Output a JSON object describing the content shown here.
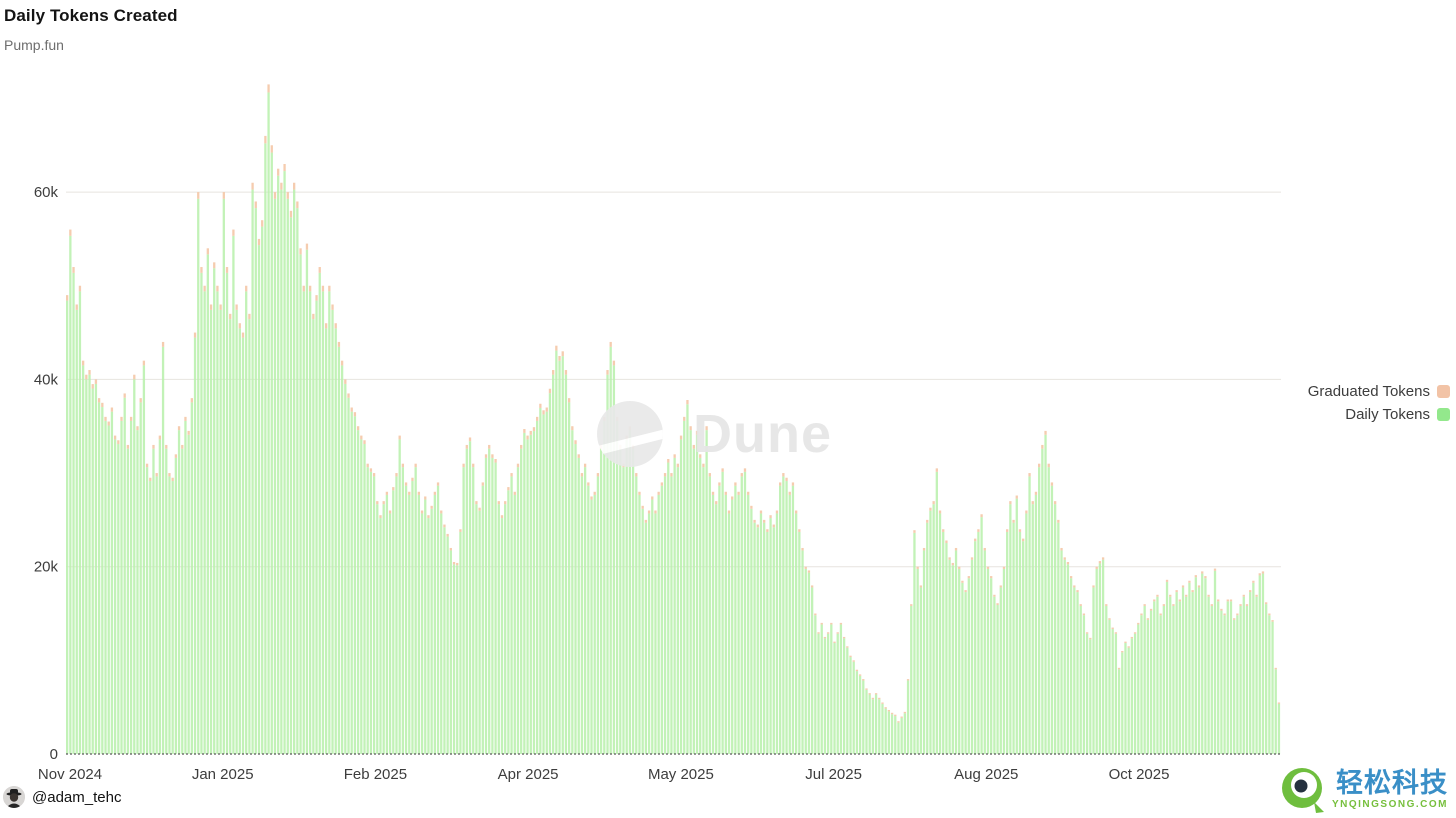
{
  "header": {
    "title": "Daily Tokens Created",
    "subtitle": "Pump.fun"
  },
  "watermark": {
    "text": "Dune"
  },
  "footer": {
    "handle": "@adam_tehc"
  },
  "brand": {
    "name": "轻松科技",
    "domain": "YNQINGSONG.COM"
  },
  "legend": [
    {
      "label": "Graduated Tokens",
      "color": "#f2c3a6"
    },
    {
      "label": "Daily Tokens",
      "color": "#93e88c"
    }
  ],
  "colors": {
    "bar_green": "#b9f0ad",
    "bar_salmon": "#f4c6a6",
    "gridline": "#e7e4df",
    "axis_text": "#3d3d3d",
    "baseline": "#5a5a5a"
  },
  "chart_data": {
    "type": "bar",
    "stacked": true,
    "title": "Daily Tokens Created",
    "subtitle": "Pump.fun",
    "xlabel": "",
    "ylabel": "",
    "grid": true,
    "legend_position": "right",
    "x_ticks": [
      "Nov 2024",
      "Jan 2025",
      "Feb 2025",
      "Apr 2025",
      "May 2025",
      "Jul 2025",
      "Aug 2025",
      "Oct 2025"
    ],
    "y_ticks": [
      {
        "label": "0",
        "value_k": 0
      },
      {
        "label": "20k",
        "value_k": 20
      },
      {
        "label": "40k",
        "value_k": 40
      },
      {
        "label": "60k",
        "value_k": 60
      }
    ],
    "ylim_k": [
      0,
      72
    ],
    "time_span": "Nov 2024 to mid Nov 2025, one bar per day",
    "peak": {
      "value_k": 71.5,
      "period": "early Jan 2025"
    },
    "series": [
      {
        "name": "Daily Tokens",
        "unit": "tokens created per day (thousands)",
        "values_k": [
          49,
          56,
          52,
          48,
          50,
          42,
          40.5,
          41,
          39.5,
          40,
          38,
          37.5,
          36,
          35.5,
          37,
          34,
          33.5,
          36,
          38.5,
          33,
          36,
          40.5,
          35,
          38,
          42,
          31,
          29.5,
          33,
          30,
          34,
          44,
          33,
          30,
          29.5,
          32,
          35,
          33,
          36,
          34.5,
          38,
          45,
          60,
          52,
          50,
          54,
          48,
          52.5,
          50,
          48,
          60,
          52,
          47,
          56,
          48,
          46,
          45,
          50,
          47,
          61,
          59,
          55,
          57,
          66,
          71.5,
          65,
          60,
          62.5,
          61,
          63,
          60,
          58,
          61,
          59,
          54,
          50,
          54.5,
          50,
          47,
          49,
          52,
          50,
          46,
          50,
          48,
          46,
          44,
          42,
          40,
          38.5,
          37,
          36.5,
          35,
          34,
          33.5,
          31,
          30.5,
          30,
          27,
          25.5,
          27,
          28,
          26,
          28.5,
          30,
          34,
          31,
          29,
          28,
          29.5,
          31,
          28,
          26,
          27.5,
          25.5,
          26.5,
          28,
          29,
          26,
          24.5,
          23.5,
          22,
          20.5,
          20.4,
          24,
          31,
          33,
          33.8,
          31,
          27,
          26.3,
          29,
          32,
          33,
          32,
          31.5,
          27,
          25.5,
          27,
          28.5,
          30,
          28,
          31,
          33,
          34.7,
          34,
          34.5,
          34.9,
          36,
          37.4,
          36.7,
          37,
          39,
          41,
          43.6,
          42.5,
          43,
          41,
          38,
          35,
          33.5,
          32,
          30,
          31,
          29,
          27.5,
          28,
          30,
          33,
          36,
          41,
          44,
          42,
          36,
          33,
          31,
          34,
          35,
          33,
          30,
          28,
          26.5,
          25,
          26,
          27.5,
          26,
          28,
          29,
          30,
          31.5,
          30,
          32,
          31,
          34,
          36,
          37.8,
          35,
          33,
          34.5,
          32,
          31,
          35,
          30,
          28,
          27,
          29,
          30.5,
          28,
          26,
          27.5,
          29,
          28,
          30,
          30.5,
          28,
          26.5,
          25,
          24.5,
          26,
          25,
          24,
          25.5,
          24.5,
          26,
          29,
          30,
          29.5,
          28,
          29,
          26,
          24,
          22,
          20,
          19.6,
          18,
          15,
          13,
          14,
          12.5,
          13,
          14,
          12,
          13,
          14,
          12.5,
          11.5,
          10.5,
          10,
          9,
          8.5,
          8,
          7,
          6.5,
          6,
          6.5,
          6,
          5.5,
          5,
          4.7,
          4.4,
          4.2,
          3.5,
          4,
          4.5,
          8,
          16,
          23.9,
          20,
          18,
          22,
          25,
          26.3,
          27,
          30.5,
          26,
          24,
          22.8,
          21,
          20.4,
          22,
          20,
          18.5,
          17.5,
          19,
          21,
          23,
          24,
          25.6,
          22,
          20,
          19,
          17,
          16.1,
          18,
          20,
          24,
          27,
          25,
          27.6,
          24,
          23,
          26,
          30,
          27,
          28,
          31,
          33,
          34.5,
          31,
          29,
          27,
          25,
          22,
          21,
          20.5,
          19,
          18,
          17.5,
          16,
          15,
          13,
          12.4,
          18,
          20,
          20.6,
          21,
          16,
          14.5,
          13.5,
          13,
          9.2,
          11,
          12,
          11.5,
          12.5,
          13,
          14,
          15,
          16,
          14.5,
          15.5,
          16.5,
          17,
          15,
          16,
          18.6,
          17,
          16,
          17.5,
          16.5,
          18,
          17,
          18.5,
          17.5,
          19.1,
          18,
          19.5,
          19,
          17,
          16,
          19.8,
          16.5,
          15.5,
          15,
          16.5,
          16.5,
          14.5,
          15,
          16,
          17,
          16,
          17.5,
          18.5,
          17,
          19.3,
          19.5,
          16.2,
          15,
          14.3,
          9.2,
          5.5
        ]
      },
      {
        "name": "Graduated Tokens",
        "unit": "tokens graduated per day",
        "note": "rendered as a thin cap stacked on top of each daily bar",
        "approx_ratio_of_daily": 0.012
      }
    ]
  }
}
